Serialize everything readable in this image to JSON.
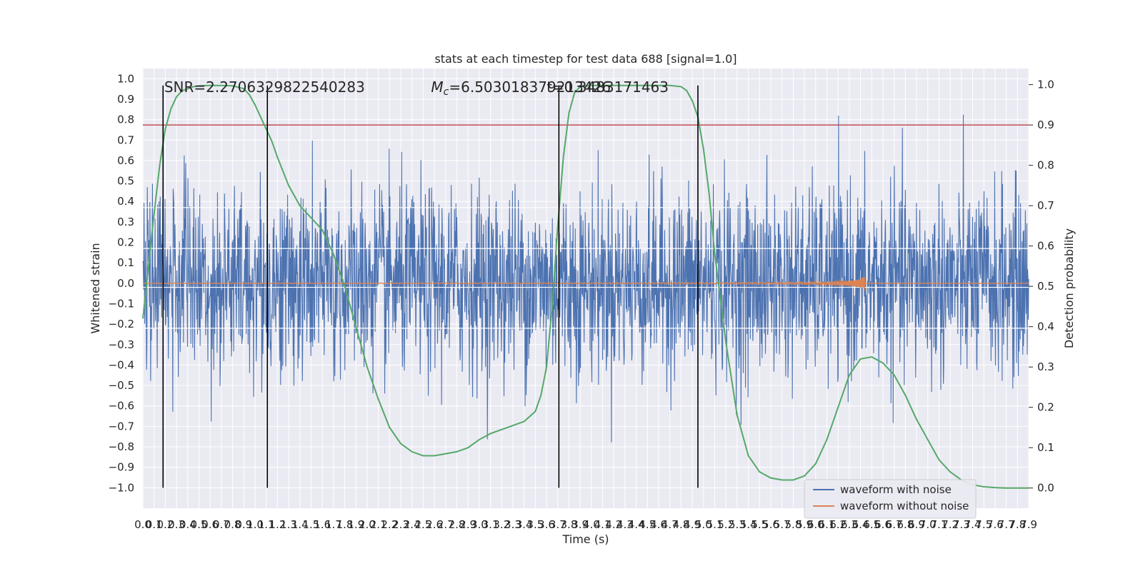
{
  "chart_data": {
    "type": "line",
    "title": "stats at each timestep for test data 688 [signal=1.0]",
    "xlabel": "Time (s)",
    "ylabel": "Whitened strain",
    "y2label": "Detection probability",
    "xlim": [
      0.0,
      7.9
    ],
    "ylim": [
      -1.1,
      1.05
    ],
    "y2lim": [
      -0.05,
      1.04
    ],
    "grid": true,
    "legend_position": "bottom-right",
    "x_ticks": [
      0.0,
      0.1,
      0.2,
      0.3,
      0.4,
      0.5,
      0.6,
      0.7,
      0.8,
      0.9,
      1.0,
      1.1,
      1.2,
      1.3,
      1.4,
      1.5,
      1.6,
      1.7,
      1.8,
      1.9,
      2.0,
      2.1,
      2.2,
      2.3,
      2.4,
      2.5,
      2.6,
      2.7,
      2.8,
      2.9,
      3.0,
      3.1,
      3.2,
      3.3,
      3.4,
      3.5,
      3.6,
      3.7,
      3.8,
      3.9,
      4.0,
      4.1,
      4.2,
      4.3,
      4.4,
      4.5,
      4.6,
      4.7,
      4.8,
      4.9,
      5.0,
      5.1,
      5.2,
      5.3,
      5.4,
      5.5,
      5.6,
      5.7,
      5.8,
      5.9,
      6.0,
      6.1,
      6.2,
      6.3,
      6.4,
      6.5,
      6.6,
      6.7,
      6.8,
      6.9,
      7.0,
      7.1,
      7.2,
      7.3,
      7.4,
      7.5,
      7.6,
      7.7,
      7.8,
      7.9
    ],
    "y_ticks": [
      1.0,
      0.9,
      0.8,
      0.7,
      0.6,
      0.5,
      0.4,
      0.3,
      0.2,
      0.1,
      0.0,
      -0.1,
      -0.2,
      -0.3,
      -0.4,
      -0.5,
      -0.6,
      -0.7,
      -0.8,
      -0.9,
      -1.0
    ],
    "y_tick_labels": [
      "1.0",
      "0.9",
      "0.8",
      "0.7",
      "0.6",
      "0.5",
      "0.4",
      "0.3",
      "0.2",
      "0.1",
      "0.0",
      "−0.1",
      "−0.2",
      "−0.3",
      "−0.4",
      "−0.5",
      "−0.6",
      "−0.7",
      "−0.8",
      "−0.9",
      "−1.0"
    ],
    "y2_ticks": [
      1.0,
      0.9,
      0.8,
      0.7,
      0.6,
      0.5,
      0.4,
      0.3,
      0.2,
      0.1,
      0.0
    ],
    "y2_tick_labels": [
      "1.0",
      "0.9",
      "0.8",
      "0.7",
      "0.6",
      "0.5",
      "0.4",
      "0.3",
      "0.2",
      "0.1",
      "0.0"
    ],
    "threshold_y2": 0.9,
    "vertical_markers_x": [
      0.18,
      1.11,
      3.71,
      4.95
    ],
    "annotations": [
      {
        "text": "SNR=2.2706329822540283",
        "x": 0.19,
        "y": 0.97
      },
      {
        "text": "M_c=6.503018379213426",
        "x": 2.57,
        "y": 0.97
      },
      {
        "text": "t=0.3483171463",
        "x": 3.6,
        "y": 0.97
      }
    ],
    "series": [
      {
        "name": "waveform with noise",
        "color": "#4c72b0",
        "kind": "noise",
        "amplitude_typical": 0.45,
        "amplitude_max": 0.95
      },
      {
        "name": "waveform without noise",
        "color": "#dd8452",
        "kind": "chirp",
        "merger_time": 6.44,
        "peak_amplitude": 0.06,
        "zero_after_merger": true
      },
      {
        "name": "detection probability",
        "color": "#55a868",
        "axis": "y2",
        "x": [
          0.0,
          0.05,
          0.1,
          0.15,
          0.2,
          0.25,
          0.3,
          0.35,
          0.4,
          0.45,
          0.5,
          0.6,
          0.7,
          0.8,
          0.9,
          0.95,
          1.0,
          1.05,
          1.1,
          1.15,
          1.2,
          1.3,
          1.4,
          1.5,
          1.6,
          1.7,
          1.8,
          1.9,
          2.0,
          2.1,
          2.2,
          2.3,
          2.4,
          2.5,
          2.6,
          2.7,
          2.8,
          2.9,
          3.0,
          3.1,
          3.2,
          3.3,
          3.4,
          3.5,
          3.55,
          3.6,
          3.65,
          3.7,
          3.75,
          3.8,
          3.85,
          3.9,
          4.0,
          4.1,
          4.2,
          4.3,
          4.4,
          4.5,
          4.6,
          4.7,
          4.8,
          4.85,
          4.9,
          4.95,
          5.0,
          5.05,
          5.1,
          5.2,
          5.3,
          5.4,
          5.5,
          5.6,
          5.7,
          5.8,
          5.9,
          6.0,
          6.1,
          6.2,
          6.3,
          6.4,
          6.5,
          6.6,
          6.7,
          6.8,
          6.9,
          7.0,
          7.1,
          7.2,
          7.3,
          7.4,
          7.5,
          7.6,
          7.7,
          7.8,
          7.9
        ],
        "y": [
          0.42,
          0.55,
          0.68,
          0.8,
          0.89,
          0.94,
          0.97,
          0.985,
          0.99,
          0.995,
          0.997,
          0.998,
          0.998,
          0.997,
          0.99,
          0.975,
          0.95,
          0.92,
          0.89,
          0.86,
          0.82,
          0.75,
          0.7,
          0.67,
          0.64,
          0.58,
          0.5,
          0.4,
          0.3,
          0.22,
          0.15,
          0.11,
          0.09,
          0.08,
          0.08,
          0.085,
          0.09,
          0.1,
          0.12,
          0.135,
          0.145,
          0.155,
          0.165,
          0.19,
          0.23,
          0.3,
          0.45,
          0.65,
          0.82,
          0.93,
          0.98,
          0.995,
          0.998,
          0.998,
          0.998,
          0.998,
          0.998,
          0.998,
          0.998,
          0.998,
          0.995,
          0.985,
          0.96,
          0.92,
          0.84,
          0.73,
          0.58,
          0.36,
          0.18,
          0.08,
          0.04,
          0.025,
          0.02,
          0.02,
          0.03,
          0.06,
          0.12,
          0.2,
          0.28,
          0.32,
          0.325,
          0.31,
          0.28,
          0.23,
          0.17,
          0.12,
          0.07,
          0.04,
          0.02,
          0.008,
          0.003,
          0.001,
          0.0,
          0.0,
          0.0
        ]
      }
    ]
  },
  "legend": {
    "items": [
      {
        "label": "waveform with noise",
        "color": "#4c72b0"
      },
      {
        "label": "waveform without noise",
        "color": "#dd8452"
      }
    ]
  }
}
